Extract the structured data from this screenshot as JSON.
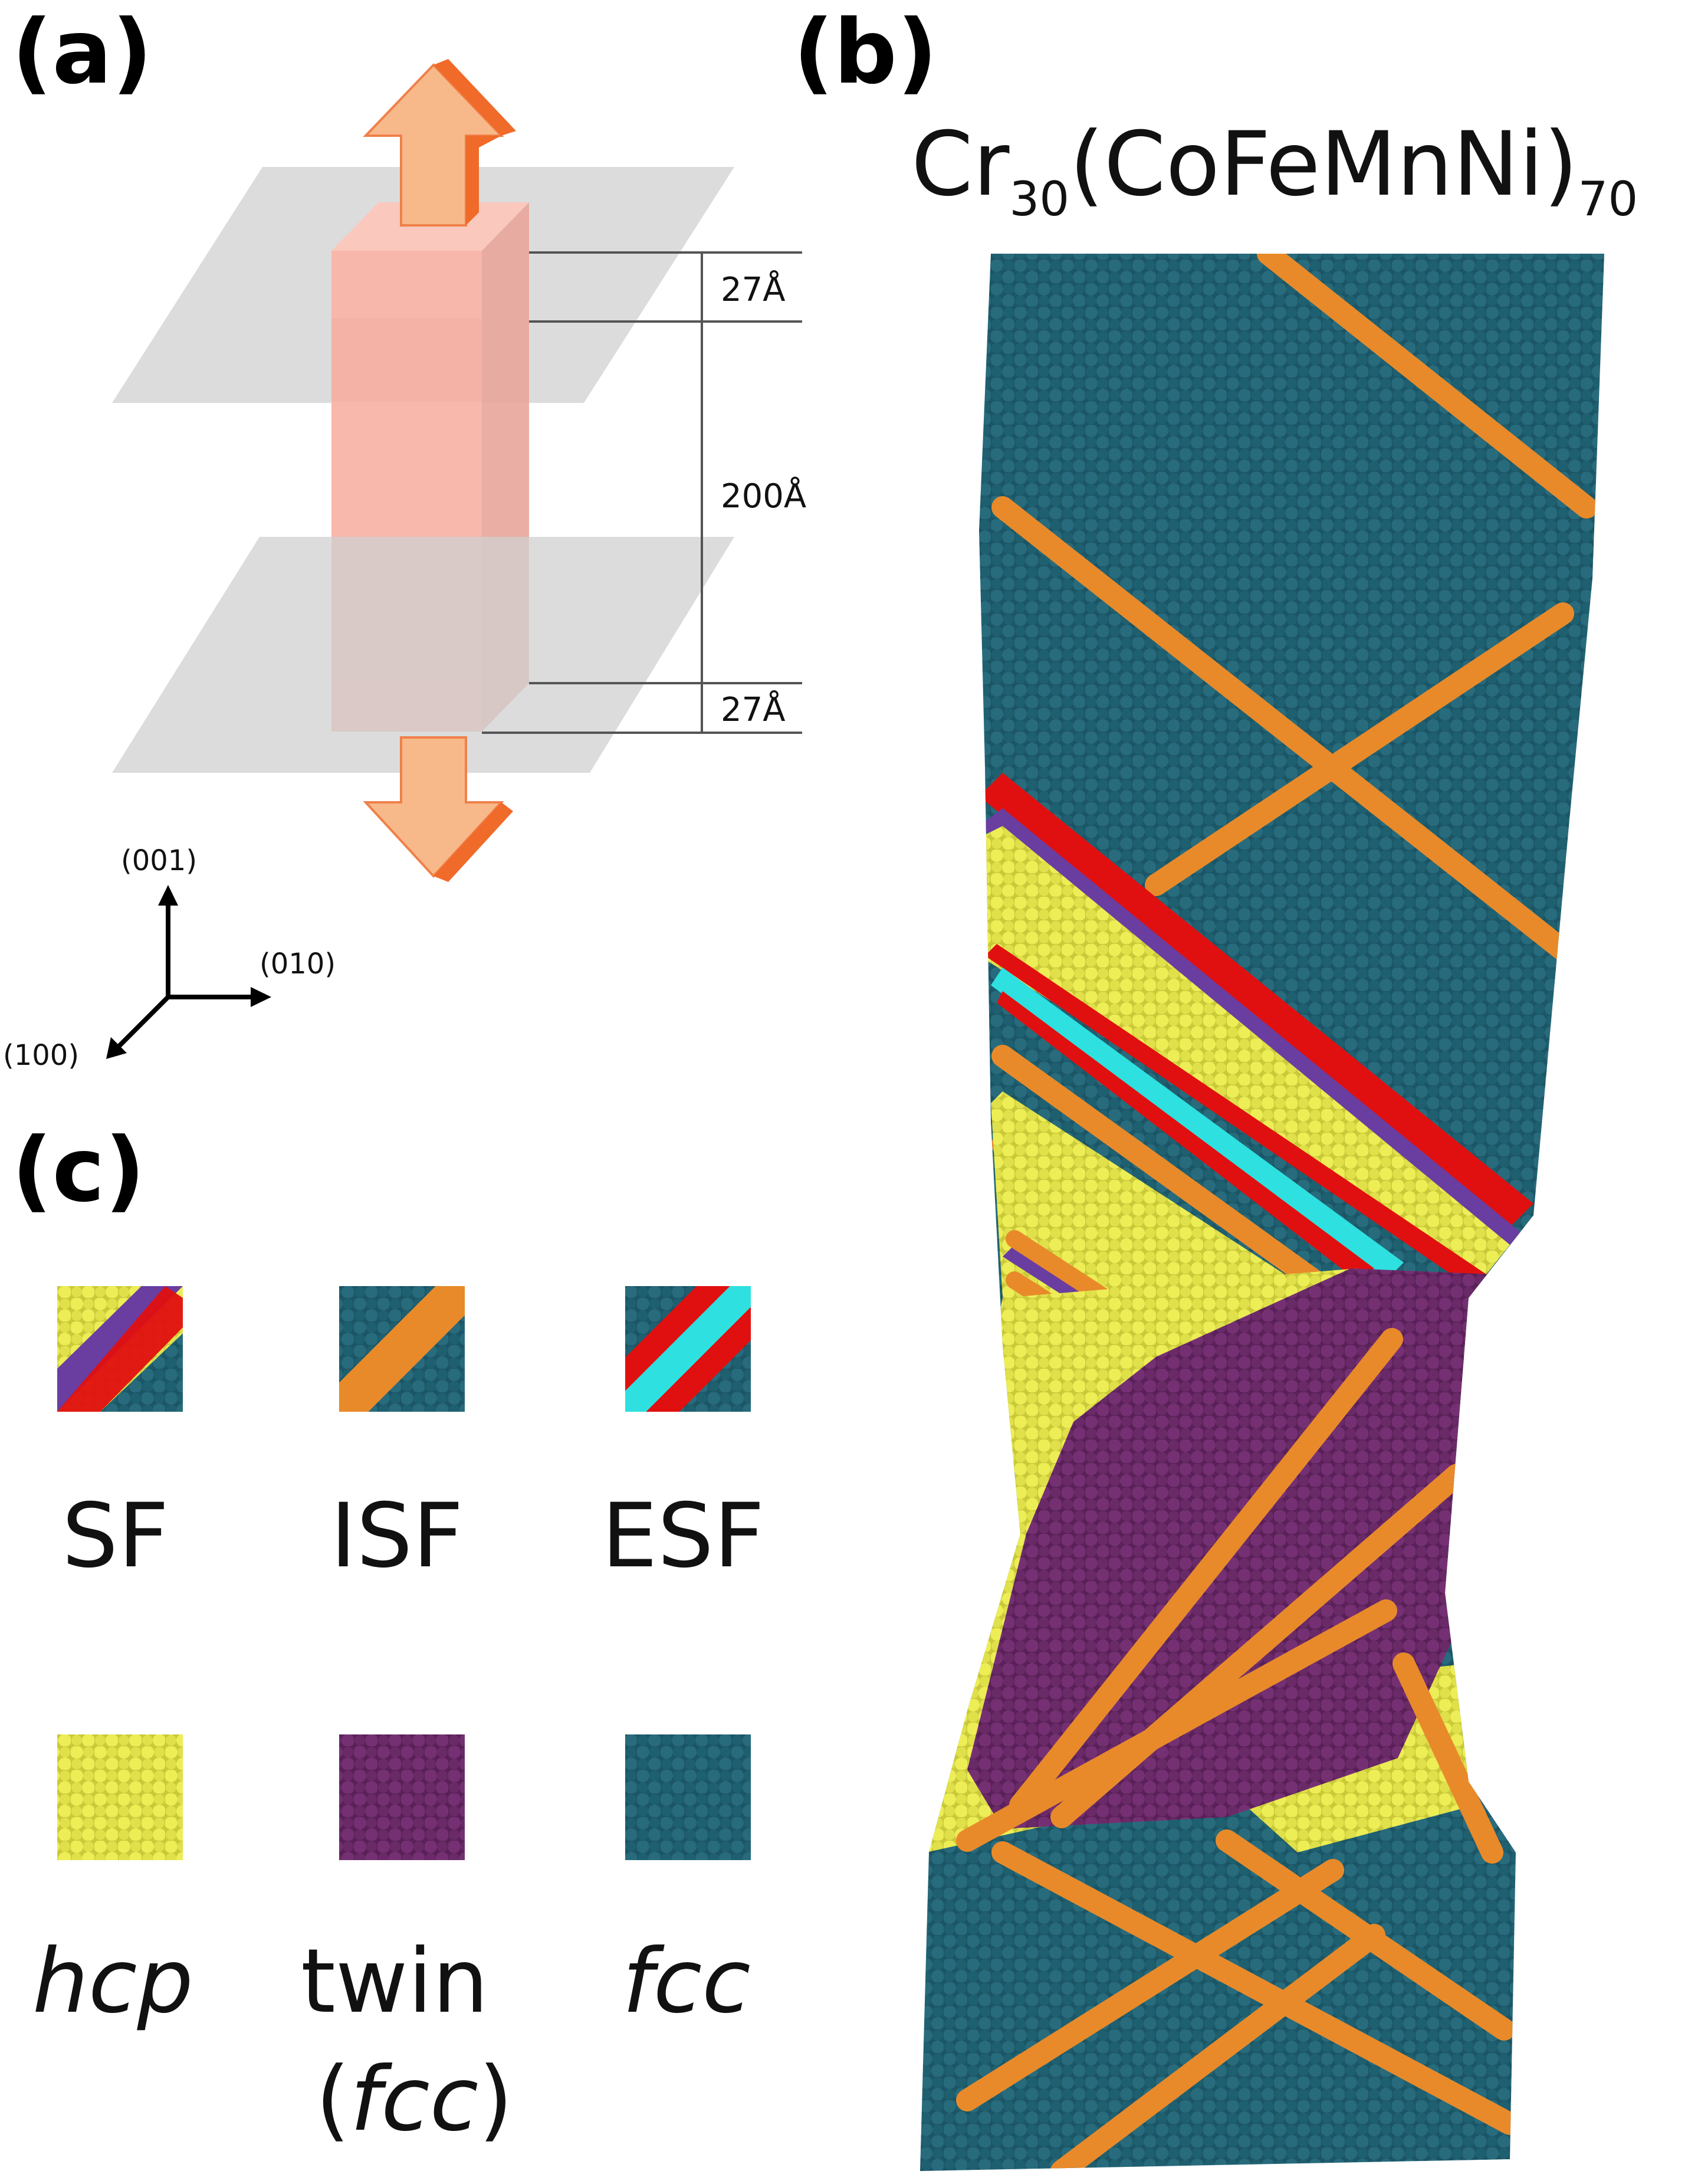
{
  "panels": {
    "a": {
      "label": "(a)",
      "dims": {
        "top": "27Å",
        "middle": "200Å",
        "bottom": "27Å"
      },
      "axes": {
        "z": "(001)",
        "y": "(010)",
        "x": "(100)"
      }
    },
    "b": {
      "label": "(b)",
      "title": {
        "el": "Cr",
        "sub1": "30",
        "paren": "(CoFeMnNi)",
        "sub2": "70"
      }
    },
    "c": {
      "label": "(c)",
      "legend": [
        {
          "key": "sf",
          "label": "SF",
          "italic": false
        },
        {
          "key": "isf",
          "label": "ISF",
          "italic": false
        },
        {
          "key": "esf",
          "label": "ESF",
          "italic": false
        },
        {
          "key": "hcp",
          "label": "hcp",
          "italic": true
        },
        {
          "key": "twin",
          "label": "twin",
          "sublabel_pre": "(",
          "sublabel": "fcc",
          "sublabel_post": ")",
          "italic": false
        },
        {
          "key": "fcc",
          "label": "fcc",
          "italic": true
        }
      ]
    }
  },
  "colors": {
    "fcc": "#1f5f6e",
    "hcp": "#e8e84a",
    "twin": "#6e2a6b",
    "isf_band": "#e88a2a",
    "esf_red": "#e01010",
    "esf_cyan": "#2ee0e0",
    "sf_purple": "#6a3da0",
    "sample_box": "#f6a79a",
    "arrow": "#f7b98a",
    "plane": "#c8c8c8"
  }
}
